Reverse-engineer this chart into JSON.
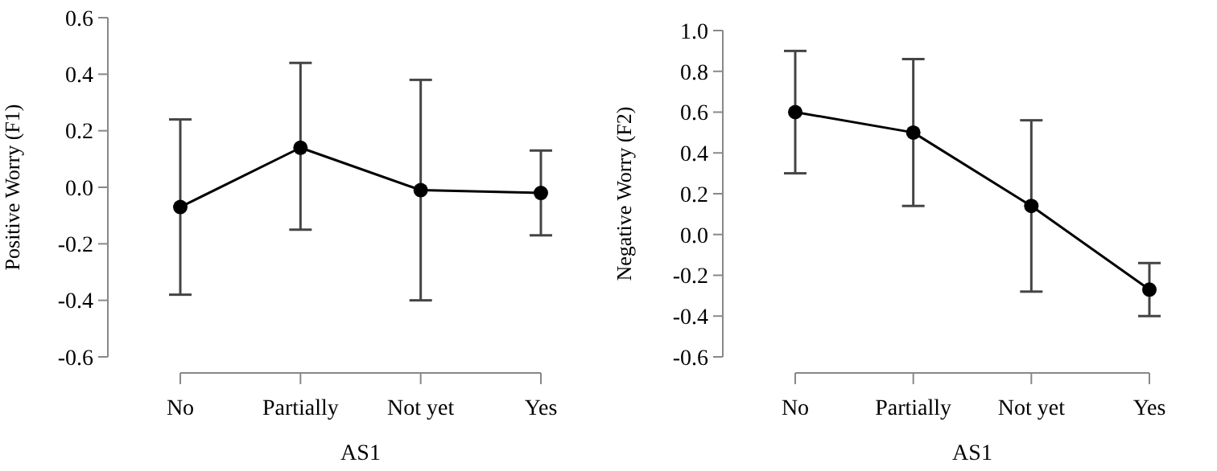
{
  "chart_data": [
    {
      "type": "line",
      "xlabel": "AS1",
      "ylabel": "Positive Worry (F1)",
      "categories": [
        "No",
        "Partially",
        "Not yet",
        "Yes"
      ],
      "series": [
        {
          "color": "#000000",
          "values": [
            -0.07,
            0.14,
            -0.01,
            -0.02
          ],
          "errors": [
            [
              -0.38,
              0.24
            ],
            [
              -0.15,
              0.44
            ],
            [
              -0.4,
              0.38
            ],
            [
              -0.17,
              0.13
            ]
          ]
        }
      ],
      "ylim": [
        -0.6,
        0.6
      ],
      "yticks": [
        {
          "value": -0.6,
          "label": "-0.6"
        },
        {
          "value": -0.4,
          "label": "-0.4"
        },
        {
          "value": -0.2,
          "label": "-0.2"
        },
        {
          "value": 0,
          "label": "0.0"
        },
        {
          "value": 0.2,
          "label": "0.2"
        },
        {
          "value": 0.4,
          "label": "0.4"
        },
        {
          "value": 0.6,
          "label": "0.6"
        }
      ],
      "marker": "circle",
      "grid": false
    },
    {
      "type": "line",
      "xlabel": "AS1",
      "ylabel": "Negative Worry (F2)",
      "categories": [
        "No",
        "Partially",
        "Not yet",
        "Yes"
      ],
      "series": [
        {
          "color": "#000000",
          "values": [
            0.6,
            0.5,
            0.14,
            -0.27
          ],
          "errors": [
            [
              0.3,
              0.9
            ],
            [
              0.14,
              0.86
            ],
            [
              -0.28,
              0.56
            ],
            [
              -0.4,
              -0.14
            ]
          ]
        }
      ],
      "ylim": [
        -0.6,
        1.0
      ],
      "yticks": [
        {
          "value": -0.6,
          "label": "-0.6"
        },
        {
          "value": -0.4,
          "label": "-0.4"
        },
        {
          "value": -0.2,
          "label": "-0.2"
        },
        {
          "value": 0,
          "label": "0.0"
        },
        {
          "value": 0.2,
          "label": "0.2"
        },
        {
          "value": 0.4,
          "label": "0.4"
        },
        {
          "value": 0.6,
          "label": "0.6"
        },
        {
          "value": 0.8,
          "label": "0.8"
        },
        {
          "value": 1.0,
          "label": "1.0"
        }
      ],
      "marker": "circle",
      "grid": false
    }
  ]
}
